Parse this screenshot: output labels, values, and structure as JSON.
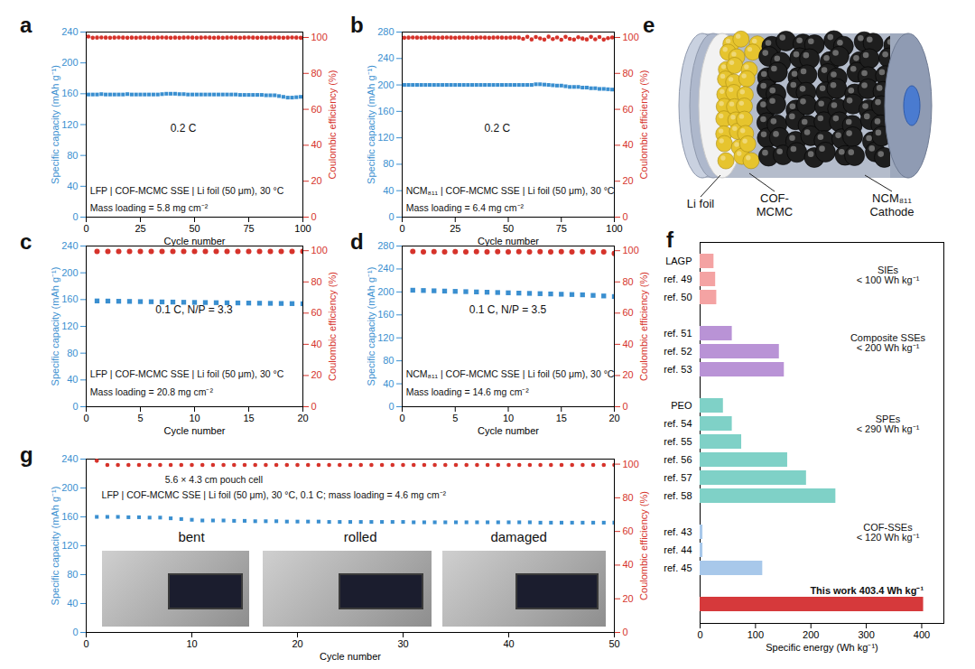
{
  "chart_data": [
    {
      "panel": "a",
      "type": "scatter",
      "x": [
        1,
        3,
        5,
        7,
        9,
        11,
        13,
        15,
        17,
        19,
        21,
        23,
        25,
        27,
        29,
        31,
        33,
        35,
        37,
        39,
        41,
        43,
        45,
        47,
        49,
        51,
        53,
        55,
        57,
        59,
        61,
        63,
        65,
        67,
        69,
        71,
        73,
        75,
        77,
        79,
        81,
        83,
        85,
        87,
        89,
        91,
        93,
        95,
        97,
        99
      ],
      "xlim": [
        0,
        100
      ],
      "xticks": [
        0,
        25,
        50,
        75,
        100
      ],
      "xlabel": "Cycle number",
      "ylim": [
        0,
        240
      ],
      "yticks": [
        0,
        40,
        80,
        120,
        160,
        200,
        240
      ],
      "ylabel": "Specific capacity (mAh g⁻¹)",
      "y2lim": [
        0,
        103
      ],
      "y2ticks": [
        0,
        20,
        40,
        60,
        80,
        100
      ],
      "y2label": "Coulombic efficiency (%)",
      "series": [
        {
          "color": "#3a8fd0",
          "marker": "square",
          "values": [
            159,
            159,
            159,
            159.5,
            159,
            159,
            159,
            159,
            159,
            159.5,
            159,
            159,
            159,
            159,
            159,
            159,
            159,
            159.5,
            160,
            160,
            160,
            159.5,
            159.5,
            159,
            159,
            159,
            159,
            159,
            159,
            159,
            159,
            159,
            159,
            159,
            159,
            158.5,
            158.5,
            158.5,
            158.5,
            158.5,
            158.5,
            158,
            158,
            158,
            157,
            156,
            155,
            155,
            155.5,
            156
          ]
        },
        {
          "axis": "y2",
          "color": "#d6332b",
          "marker": "circle",
          "values": [
            100.5,
            99.8,
            99.9,
            100,
            99.9,
            99.8,
            99.9,
            100,
            99.9,
            99.8,
            99.9,
            99.8,
            99.9,
            100,
            99.9,
            99.8,
            99.9,
            100,
            99.9,
            99.8,
            99.9,
            99.8,
            99.9,
            100,
            99.9,
            99.8,
            99.9,
            100,
            99.9,
            99.8,
            99.9,
            99.8,
            99.9,
            100,
            99.9,
            99.8,
            99.9,
            100,
            99.9,
            99.8,
            99.9,
            99.8,
            99.9,
            100,
            99.9,
            99.8,
            99.9,
            100,
            99.9,
            99.8
          ]
        }
      ],
      "annotations": [
        "0.2 C",
        "LFP | COF-MCMC SSE | Li foil (50 μm), 30 °C",
        "Mass loading = 5.8 mg cm⁻²"
      ]
    },
    {
      "panel": "b",
      "type": "scatter",
      "x": [
        1,
        3,
        5,
        7,
        9,
        11,
        13,
        15,
        17,
        19,
        21,
        23,
        25,
        27,
        29,
        31,
        33,
        35,
        37,
        39,
        41,
        43,
        45,
        47,
        49,
        51,
        53,
        55,
        57,
        59,
        61,
        63,
        65,
        67,
        69,
        71,
        73,
        75,
        77,
        79,
        81,
        83,
        85,
        87,
        89,
        91,
        93,
        95,
        97,
        99
      ],
      "xlim": [
        0,
        100
      ],
      "xticks": [
        0,
        25,
        50,
        75,
        100
      ],
      "xlabel": "Cycle number",
      "ylim": [
        0,
        280
      ],
      "yticks": [
        0,
        40,
        80,
        120,
        160,
        200,
        240,
        280
      ],
      "ylabel": "Specific capacity (mAh g⁻¹)",
      "y2lim": [
        0,
        103
      ],
      "y2ticks": [
        0,
        20,
        40,
        60,
        80,
        100
      ],
      "y2label": "Coulombic efficiency (%)",
      "series": [
        {
          "color": "#3a8fd0",
          "marker": "square",
          "values": [
            200,
            200,
            200,
            200,
            200,
            200,
            200,
            200,
            200,
            200,
            200,
            200,
            200,
            200,
            200,
            200,
            200,
            200,
            200,
            200,
            200,
            200,
            200,
            200,
            200,
            200,
            200,
            200,
            200,
            200,
            200,
            201,
            201,
            200.5,
            200,
            199.5,
            199,
            199,
            198,
            197,
            197,
            197,
            196,
            196,
            195,
            195,
            194,
            194,
            193.5,
            193
          ]
        },
        {
          "axis": "y2",
          "color": "#d6332b",
          "marker": "circle",
          "values": [
            99.8,
            99.9,
            100,
            99.9,
            99.8,
            99.9,
            100,
            99.9,
            99.8,
            99.9,
            100,
            99.9,
            99.8,
            99.9,
            100,
            99.9,
            99.8,
            99.9,
            100,
            99.9,
            99.8,
            99.9,
            100,
            99.9,
            99.8,
            99.9,
            100,
            99.9,
            99.2,
            100.3,
            98.9,
            100.2,
            99.5,
            98.8,
            100.4,
            99.1,
            100,
            98.7,
            100.3,
            99.2,
            98.8,
            100.1,
            99.4,
            98.9,
            100.3,
            99,
            100.2,
            98.8,
            99.6,
            100
          ]
        }
      ],
      "annotations": [
        "0.2 C",
        "NCM₈₁₁ | COF-MCMC SSE | Li foil (50 μm), 30 °C",
        "Mass loading = 6.4 mg cm⁻²"
      ]
    },
    {
      "panel": "c",
      "type": "scatter",
      "x": [
        1,
        2,
        3,
        4,
        5,
        6,
        7,
        8,
        9,
        10,
        11,
        12,
        13,
        14,
        15,
        16,
        17,
        18,
        19,
        20
      ],
      "xlim": [
        0,
        20
      ],
      "xticks": [
        0,
        5,
        10,
        15,
        20
      ],
      "xlabel": "Cycle number",
      "ylim": [
        0,
        240
      ],
      "yticks": [
        0,
        40,
        80,
        120,
        160,
        200,
        240
      ],
      "ylabel": "Specific capacity (mAh g⁻¹)",
      "y2lim": [
        0,
        103
      ],
      "y2ticks": [
        0,
        20,
        40,
        60,
        80,
        100
      ],
      "y2label": "Coulombic efficiency (%)",
      "series": [
        {
          "color": "#3a8fd0",
          "marker": "square",
          "values": [
            158,
            157.8,
            157.5,
            157.3,
            157,
            156.8,
            156.5,
            156.3,
            156,
            155.8,
            155.6,
            155.4,
            155.2,
            155,
            154.8,
            154.6,
            154.4,
            154.2,
            154,
            153.8
          ]
        },
        {
          "axis": "y2",
          "color": "#d6332b",
          "marker": "circle",
          "values": [
            99.5,
            99.6,
            99.6,
            99.6,
            99.6,
            99.6,
            99.6,
            99.6,
            99.6,
            99.6,
            99.6,
            99.6,
            99.6,
            99.6,
            99.6,
            99.6,
            99.6,
            99.6,
            99.6,
            99.6
          ]
        }
      ],
      "annotations": [
        "0.1 C, N/P = 3.3",
        "LFP | COF-MCMC SSE | Li foil (50 μm), 30 °C",
        "Mass loading = 20.8 mg cm⁻²"
      ]
    },
    {
      "panel": "d",
      "type": "scatter",
      "x": [
        1,
        2,
        3,
        4,
        5,
        6,
        7,
        8,
        9,
        10,
        11,
        12,
        13,
        14,
        15,
        16,
        17,
        18,
        19,
        20
      ],
      "xlim": [
        0,
        20
      ],
      "xticks": [
        0,
        5,
        10,
        15,
        20
      ],
      "xlabel": "Cycle number",
      "ylim": [
        0,
        280
      ],
      "yticks": [
        0,
        40,
        80,
        120,
        160,
        200,
        240,
        280
      ],
      "ylabel": "Specific capacity (mAh g⁻¹)",
      "y2lim": [
        0,
        103
      ],
      "y2ticks": [
        0,
        20,
        40,
        60,
        80,
        100
      ],
      "y2label": "Coulombic efficiency (%)",
      "series": [
        {
          "color": "#3a8fd0",
          "marker": "square",
          "values": [
            203,
            202.5,
            202,
            201.5,
            201,
            200.5,
            200,
            199.5,
            199,
            198.5,
            198,
            197.5,
            197,
            196.5,
            196,
            195.5,
            195,
            194,
            193,
            192
          ]
        },
        {
          "axis": "y2",
          "color": "#d6332b",
          "marker": "circle",
          "values": [
            99.5,
            99.3,
            99.4,
            99.3,
            99.4,
            99.3,
            99.4,
            99.3,
            99.4,
            99.3,
            99.4,
            99.3,
            99.4,
            99.3,
            99.4,
            99.3,
            99.4,
            99.3,
            99.2,
            98.2
          ]
        }
      ],
      "annotations": [
        "0.1 C, N/P = 3.5",
        "NCM₈₁₁ | COF-MCMC SSE | Li foil (50 μm), 30 °C",
        "Mass loading = 14.6 mg cm⁻²"
      ]
    },
    {
      "panel": "e",
      "type": "diagram",
      "labels": [
        [
          "Li foil"
        ],
        [
          "COF-",
          "MCMC"
        ],
        [
          "NCM₈₁₁",
          "Cathode"
        ]
      ]
    },
    {
      "panel": "f",
      "type": "bar",
      "orientation": "horizontal",
      "categories": [
        "LAGP",
        "ref. 49",
        "ref. 50",
        null,
        "ref. 51",
        "ref. 52",
        "ref. 53",
        null,
        "PEO",
        "ref. 54",
        "ref. 55",
        "ref. 56",
        "ref. 57",
        "ref. 58",
        null,
        "ref. 43",
        "ref. 44",
        "ref. 45",
        null,
        null
      ],
      "values": [
        25,
        28,
        30,
        null,
        58,
        143,
        152,
        null,
        42,
        58,
        75,
        158,
        192,
        245,
        null,
        5,
        5,
        113,
        null,
        403.4
      ],
      "colors": [
        "#f4a3a3",
        "#f4a3a3",
        "#f4a3a3",
        null,
        "#b993d6",
        "#b993d6",
        "#b993d6",
        null,
        "#7fd1c7",
        "#7fd1c7",
        "#7fd1c7",
        "#7fd1c7",
        "#7fd1c7",
        "#7fd1c7",
        null,
        "#a8c8ea",
        "#a8c8ea",
        "#a8c8ea",
        null,
        "#d6393b"
      ],
      "xlim": [
        0,
        440
      ],
      "xticks": [
        0,
        100,
        200,
        300,
        400
      ],
      "xlabel": "Specific energy (Wh kg⁻¹)",
      "groups": [
        {
          "label": "SIEs",
          "limit": "< 100 Wh kg⁻¹"
        },
        {
          "label": "Composite SSEs",
          "limit": "< 200 Wh kg⁻¹"
        },
        {
          "label": "SPEs",
          "limit": "< 290 Wh kg⁻¹"
        },
        {
          "label": "COF-SSEs",
          "limit": "< 120 Wh kg⁻¹"
        }
      ],
      "annotations": [
        "This work 403.4 Wh kg⁻¹"
      ]
    },
    {
      "panel": "g",
      "type": "scatter",
      "x": [
        1,
        2,
        3,
        4,
        5,
        6,
        7,
        8,
        9,
        10,
        11,
        12,
        13,
        14,
        15,
        16,
        17,
        18,
        19,
        20,
        21,
        22,
        23,
        24,
        25,
        26,
        27,
        28,
        29,
        30,
        31,
        32,
        33,
        34,
        35,
        36,
        37,
        38,
        39,
        40,
        41,
        42,
        43,
        44,
        45,
        46,
        47,
        48,
        49,
        50
      ],
      "xlim": [
        0,
        50
      ],
      "xticks": [
        0,
        10,
        20,
        30,
        40,
        50
      ],
      "xlabel": "Cycle number",
      "ylim": [
        0,
        240
      ],
      "yticks": [
        0,
        40,
        80,
        120,
        160,
        200,
        240
      ],
      "ylabel": "Specific capacity (mAh g⁻¹)",
      "y2lim": [
        0,
        103
      ],
      "y2ticks": [
        0,
        20,
        40,
        60,
        80,
        100
      ],
      "y2label": "Coulombic efficiency (%)",
      "series": [
        {
          "color": "#3a8fd0",
          "marker": "square",
          "values": [
            160,
            160,
            160,
            159.5,
            159.5,
            159,
            159,
            158,
            157,
            156,
            155,
            155,
            155,
            154.5,
            154.5,
            154,
            154,
            154,
            153.5,
            153.5,
            153.5,
            153.5,
            153,
            153,
            153,
            153,
            153,
            153,
            153,
            153,
            152.5,
            152.5,
            152.5,
            152.5,
            152.5,
            152.5,
            152.5,
            152.5,
            152.5,
            152.5,
            152.5,
            152.5,
            152,
            152,
            152,
            152,
            152,
            152,
            152,
            152
          ]
        },
        {
          "axis": "y2",
          "color": "#d6332b",
          "marker": "circle",
          "values": [
            102,
            99.5,
            99.5,
            99.5,
            99.5,
            99.5,
            99.5,
            99.5,
            99.5,
            99.5,
            99.5,
            99.5,
            99.5,
            99.5,
            99.5,
            99.5,
            99.5,
            99.5,
            99.5,
            99.5,
            99.5,
            99.5,
            99.5,
            99.5,
            99.5,
            99.5,
            99.5,
            99.5,
            99.5,
            99.5,
            99.5,
            99.5,
            99.5,
            99.5,
            99.5,
            99.5,
            99.5,
            99.5,
            99.5,
            99.5,
            99.5,
            99.5,
            99.5,
            99.5,
            99.5,
            99.5,
            99.5,
            99.5,
            99.5,
            99.5
          ]
        }
      ],
      "annotations": [
        "5.6 × 4.3 cm pouch cell",
        "LFP | COF-MCMC SSE | Li foil (50 μm), 30 °C, 0.1 C; mass loading = 4.6 mg cm⁻²"
      ],
      "photo_labels": [
        "bent",
        "rolled",
        "damaged"
      ]
    }
  ]
}
